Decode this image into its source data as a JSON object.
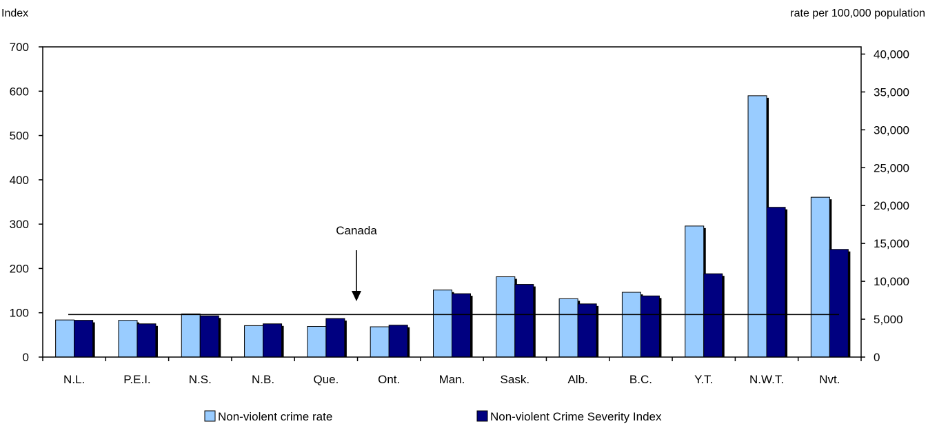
{
  "chart_data": {
    "type": "bar",
    "left_axis_title": "Index",
    "right_axis_title": "rate per 100,000 population",
    "categories": [
      "N.L.",
      "P.E.I.",
      "N.S.",
      "N.B.",
      "Que.",
      "Ont.",
      "Man.",
      "Sask.",
      "Alb.",
      "B.C.",
      "Y.T.",
      "N.W.T.",
      "Nvt."
    ],
    "series": [
      {
        "name": "Non-violent crime rate",
        "axis": "right",
        "color": "#99ccff",
        "values": [
          4900,
          4850,
          5700,
          4150,
          4050,
          4000,
          8850,
          10600,
          7700,
          8550,
          17300,
          34500,
          21100
        ]
      },
      {
        "name": "Non-violent Crime Severity Index",
        "axis": "left",
        "color": "#000080",
        "values": [
          83,
          75,
          93,
          75,
          87,
          72,
          143,
          164,
          120,
          138,
          188,
          338,
          243
        ]
      }
    ],
    "left_ylim": [
      0,
      700
    ],
    "left_ticks": [
      0,
      100,
      200,
      300,
      400,
      500,
      600,
      700
    ],
    "left_tick_labels": [
      "0",
      "100",
      "200",
      "300",
      "400",
      "500",
      "600",
      "700"
    ],
    "right_ylim": [
      0,
      40950
    ],
    "right_ticks": [
      0,
      5000,
      10000,
      15000,
      20000,
      25000,
      30000,
      35000,
      40000
    ],
    "right_tick_labels": [
      "0",
      "5,000",
      "10,000",
      "15,000",
      "20,000",
      "25,000",
      "30,000",
      "35,000",
      "40,000"
    ],
    "reference_line": {
      "label": "Canada",
      "value": 96,
      "axis": "left"
    },
    "grid": false,
    "legend_position": "bottom"
  }
}
